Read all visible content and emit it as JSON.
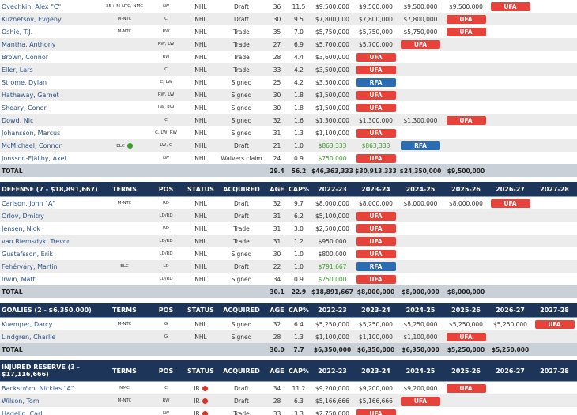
{
  "sections": [
    {
      "rows": [
        {
          "name": "Ovechkin, Alex \"C\"",
          "terms": "35+ M-NTC, NMC",
          "pos": "LW",
          "status": "NHL",
          "acquired": "Draft",
          "age": 36,
          "cap": "11.5",
          "years": [
            "$9,500,000",
            "$9,500,000",
            "$9,500,000",
            "$9,500,000",
            "UFA"
          ]
        },
        {
          "name": "Kuznetsov, Evgeny",
          "terms": "M-NTC",
          "pos": "C",
          "status": "NHL",
          "acquired": "Draft",
          "age": 30,
          "cap": "9.5",
          "years": [
            "$7,800,000",
            "$7,800,000",
            "$7,800,000",
            "UFA"
          ]
        },
        {
          "name": "Oshie, T.J.",
          "terms": "M-NTC",
          "pos": "RW",
          "status": "NHL",
          "acquired": "Trade",
          "age": 35,
          "cap": "7.0",
          "years": [
            "$5,750,000",
            "$5,750,000",
            "$5,750,000",
            "UFA"
          ]
        },
        {
          "name": "Mantha, Anthony",
          "terms": null,
          "pos": "RW, LW",
          "status": "NHL",
          "acquired": "Trade",
          "age": 27,
          "cap": "6.9",
          "years": [
            "$5,700,000",
            "$5,700,000",
            "UFA"
          ]
        },
        {
          "name": "Brown, Connor",
          "terms": null,
          "pos": "RW",
          "status": "NHL",
          "acquired": "Trade",
          "age": 28,
          "cap": "4.4",
          "years": [
            "$3,600,000",
            "UFA"
          ]
        },
        {
          "name": "Eller, Lars",
          "terms": null,
          "pos": "C",
          "status": "NHL",
          "acquired": "Trade",
          "age": 33,
          "cap": "4.2",
          "years": [
            "$3,500,000",
            "UFA"
          ]
        },
        {
          "name": "Strome, Dylan",
          "terms": null,
          "pos": "C, LW",
          "status": "NHL",
          "acquired": "Signed",
          "age": 25,
          "cap": "4.2",
          "years": [
            "$3,500,000",
            "RFA"
          ]
        },
        {
          "name": "Hathaway, Garnet",
          "terms": null,
          "pos": "RW, LW",
          "status": "NHL",
          "acquired": "Signed",
          "age": 30,
          "cap": "1.8",
          "years": [
            "$1,500,000",
            "UFA"
          ]
        },
        {
          "name": "Sheary, Conor",
          "terms": null,
          "pos": "LW, RW",
          "status": "NHL",
          "acquired": "Signed",
          "age": 30,
          "cap": "1.8",
          "years": [
            "$1,500,000",
            "UFA"
          ]
        },
        {
          "name": "Dowd, Nic",
          "terms": null,
          "pos": "C",
          "status": "NHL",
          "acquired": "Signed",
          "age": 32,
          "cap": "1.6",
          "years": [
            "$1,300,000",
            "$1,300,000",
            "$1,300,000",
            "UFA"
          ]
        },
        {
          "name": "Johansson, Marcus",
          "terms": null,
          "pos": "C, LW, RW",
          "status": "NHL",
          "acquired": "Signed",
          "age": 31,
          "cap": "1.3",
          "years": [
            "$1,100,000",
            "UFA"
          ]
        },
        {
          "name": "McMichael, Connor",
          "terms": "ELC",
          "pos": "LW, C",
          "status": "NHL",
          "acquired": "Draft",
          "age": 21,
          "cap": "1.0",
          "years": [
            "$863,333",
            "$863,333",
            "RFA"
          ],
          "amount_color": "#3d9a2c"
        },
        {
          "name": "Jonsson-Fjällby, Axel",
          "terms": null,
          "pos": "LW",
          "status": "NHL",
          "acquired": "Waivers claim",
          "age": 24,
          "cap": "0.9",
          "years": [
            "$750,000",
            "UFA"
          ],
          "amount_color": "#3d9a2c"
        }
      ],
      "total": {
        "label": "TOTAL",
        "age": "29.4",
        "cap": "56.2",
        "years": [
          "$46,363,333",
          "$30,913,333",
          "$24,350,000",
          "$9,500,000"
        ]
      }
    },
    {
      "header": [
        "DEFENSE (7 - $18,891,667)",
        "TERMS",
        "POS",
        "STATUS",
        "ACQUIRED",
        "AGE",
        "CAP%",
        "2022-23",
        "2023-24",
        "2024-25",
        "2025-26",
        "2026-27",
        "2027-28"
      ],
      "rows": [
        {
          "name": "Carlson, John \"A\"",
          "terms": "M-NTC",
          "pos": "RD",
          "status": "NHL",
          "acquired": "Draft",
          "age": 32,
          "cap": "9.7",
          "years": [
            "$8,000,000",
            "$8,000,000",
            "$8,000,000",
            "$8,000,000",
            "UFA"
          ]
        },
        {
          "name": "Orlov, Dmitry",
          "terms": null,
          "pos": "LD/RD",
          "status": "NHL",
          "acquired": "Draft",
          "age": 31,
          "cap": "6.2",
          "years": [
            "$5,100,000",
            "UFA"
          ]
        },
        {
          "name": "Jensen, Nick",
          "terms": null,
          "pos": "RD",
          "status": "NHL",
          "acquired": "Trade",
          "age": 31,
          "cap": "3.0",
          "years": [
            "$2,500,000",
            "UFA"
          ]
        },
        {
          "name": "van Riemsdyk, Trevor",
          "terms": null,
          "pos": "LD/RD",
          "status": "NHL",
          "acquired": "Trade",
          "age": 31,
          "cap": "1.2",
          "years": [
            "$950,000",
            "UFA"
          ]
        },
        {
          "name": "Gustafsson, Erik",
          "terms": null,
          "pos": "LD/RD",
          "status": "NHL",
          "acquired": "Signed",
          "age": 30,
          "cap": "1.0",
          "years": [
            "$800,000",
            "UFA"
          ]
        },
        {
          "name": "Fehérváry, Martin",
          "terms": "ELC",
          "pos": "LD",
          "status": "NHL",
          "acquired": "Draft",
          "age": 22,
          "cap": "1.0",
          "years": [
            "$791,667",
            "RFA"
          ],
          "amount_color": "#3d9a2c"
        },
        {
          "name": "Irwin, Matt",
          "terms": null,
          "pos": "LD/RD",
          "status": "NHL",
          "acquired": "Signed",
          "age": 34,
          "cap": "0.9",
          "years": [
            "$750,000",
            "UFA"
          ],
          "amount_color": "#3d9a2c"
        }
      ],
      "total": {
        "label": "TOTAL",
        "age": "30.1",
        "cap": "22.9",
        "years": [
          "$18,891,667",
          "$8,000,000",
          "$8,000,000",
          "$8,000,000"
        ]
      }
    },
    {
      "header": [
        "GOALIES (2 - $6,350,000)",
        "TERMS",
        "POS",
        "STATUS",
        "ACQUIRED",
        "AGE",
        "CAP%",
        "2022-23",
        "2023-24",
        "2024-25",
        "2025-26",
        "2026-27",
        "2027-28"
      ],
      "rows": [
        {
          "name": "Kuemper, Darcy",
          "terms": "M-NTC",
          "pos": "G",
          "status": "NHL",
          "acquired": "Signed",
          "age": 32,
          "cap": "6.4",
          "years": [
            "$5,250,000",
            "$5,250,000",
            "$5,250,000",
            "$5,250,000",
            "$5,250,000",
            "UFA"
          ]
        },
        {
          "name": "Lindgren, Charlie",
          "terms": null,
          "pos": "G",
          "status": "NHL",
          "acquired": "Signed",
          "age": 28,
          "cap": "1.3",
          "years": [
            "$1,100,000",
            "$1,100,000",
            "$1,100,000",
            "UFA"
          ]
        }
      ],
      "total": {
        "label": "TOTAL",
        "age": "30.0",
        "cap": "7.7",
        "years": [
          "$6,350,000",
          "$6,350,000",
          "$6,350,000",
          "$5,250,000",
          "$5,250,000"
        ]
      }
    },
    {
      "header": [
        "INJURED RESERVE (3 - $17,116,666)",
        "TERMS",
        "POS",
        "STATUS",
        "ACQUIRED",
        "AGE",
        "CAP%",
        "2022-23",
        "2023-24",
        "2024-25",
        "2025-26",
        "2026-27",
        "2027-28"
      ],
      "rows": [
        {
          "name": "Backström, Nicklas \"A\"",
          "terms": "NMC",
          "pos": "C",
          "status": "IR",
          "acquired": "Draft",
          "age": 34,
          "cap": "11.2",
          "years": [
            "$9,200,000",
            "$9,200,000",
            "$9,200,000",
            "UFA"
          ]
        },
        {
          "name": "Wilson, Tom",
          "terms": "M-NTC",
          "pos": "RW",
          "status": "IR",
          "acquired": "Draft",
          "age": 28,
          "cap": "6.3",
          "years": [
            "$5,166,666",
            "$5,166,666",
            "UFA"
          ]
        },
        {
          "name": "Hagelin, Carl",
          "terms": null,
          "pos": "LW",
          "status": "IR",
          "acquired": "Trade",
          "age": 33,
          "cap": "3.3",
          "years": [
            "$2,750,000",
            "UFA"
          ]
        }
      ]
    }
  ]
}
